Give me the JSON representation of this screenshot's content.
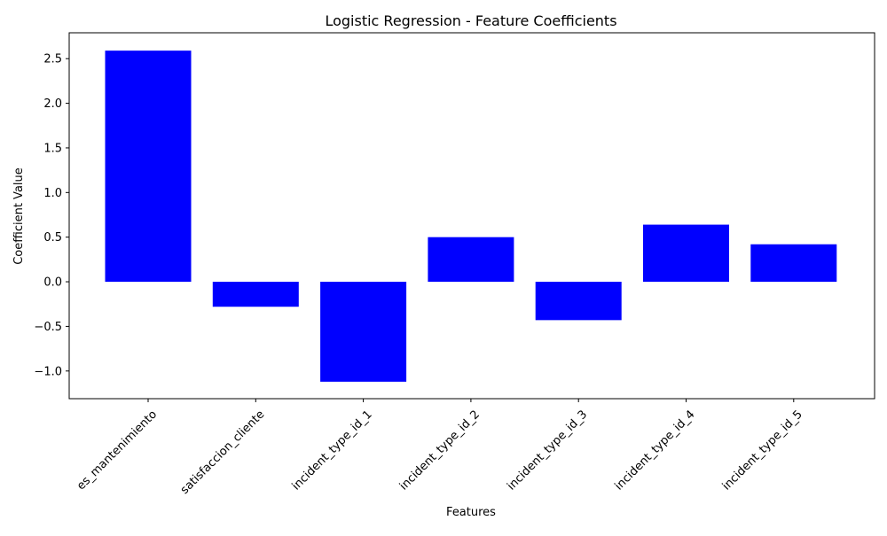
{
  "colors": {
    "bar": "#0000ff",
    "background": "#ffffff",
    "axis": "#000000"
  },
  "chart_data": {
    "type": "bar",
    "title": "Logistic Regression - Feature Coefficients",
    "xlabel": "Features",
    "ylabel": "Coefficient Value",
    "categories": [
      "es_mantenimiento",
      "satisfaccion_cliente",
      "incident_type_id_1",
      "incident_type_id_2",
      "incident_type_id_3",
      "incident_type_id_4",
      "incident_type_id_5"
    ],
    "values": [
      2.59,
      -0.28,
      -1.12,
      0.5,
      -0.43,
      0.64,
      0.42
    ],
    "ylim": [
      -1.31,
      2.79
    ],
    "yticks": [
      -1.0,
      -0.5,
      0.0,
      0.5,
      1.0,
      1.5,
      2.0,
      2.5
    ],
    "ytick_labels": [
      "−1.0",
      "−0.5",
      "0.0",
      "0.5",
      "1.0",
      "1.5",
      "2.0",
      "2.5"
    ],
    "grid": false,
    "legend": "none"
  }
}
